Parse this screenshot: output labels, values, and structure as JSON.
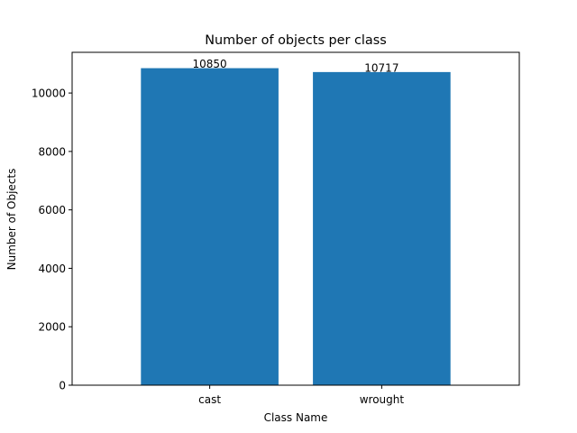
{
  "chart_data": {
    "type": "bar",
    "title": "Number of objects per class",
    "xlabel": "Class Name",
    "ylabel": "Number of Objects",
    "categories": [
      "cast",
      "wrought"
    ],
    "values": [
      10850,
      10717
    ],
    "data_labels": [
      "10850",
      "10717"
    ],
    "ylim": [
      0,
      11392.5
    ],
    "yticks": [
      0,
      2000,
      4000,
      6000,
      8000,
      10000
    ],
    "ytick_labels": [
      "0",
      "2000",
      "4000",
      "6000",
      "8000",
      "10000"
    ],
    "bar_color": "#1f77b4",
    "grid": false,
    "legend": "none"
  }
}
